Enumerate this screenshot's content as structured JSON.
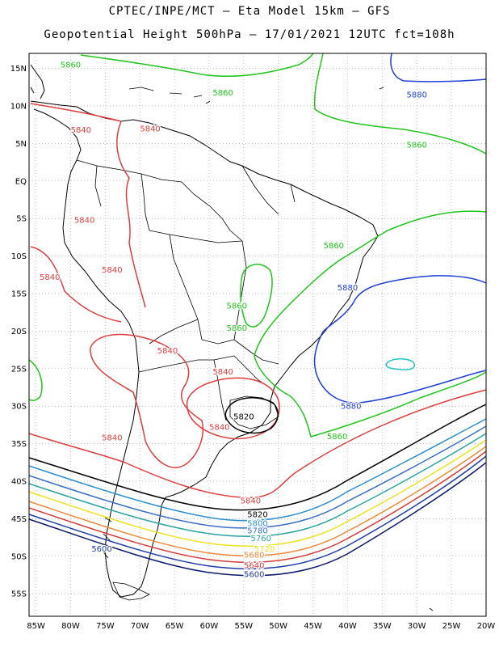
{
  "header": {
    "line1": "CPTEC/INPE/MCT –  Eta Model 15km – GFS",
    "line2": "Geopotential Height 500hPa – 17/01/2021 12UTC fct=108h"
  },
  "axes": {
    "lat_labels": [
      "15N",
      "10N",
      "5N",
      "EQ",
      "5S",
      "10S",
      "15S",
      "20S",
      "25S",
      "30S",
      "35S",
      "40S",
      "45S",
      "50S",
      "55S"
    ],
    "lat_values": [
      15,
      10,
      5,
      0,
      -5,
      -10,
      -15,
      -20,
      -25,
      -30,
      -35,
      -40,
      -45,
      -50,
      -55
    ],
    "lon_labels": [
      "85W",
      "80W",
      "75W",
      "70W",
      "65W",
      "60W",
      "55W",
      "50W",
      "45W",
      "40W",
      "35W",
      "30W",
      "25W",
      "20W"
    ],
    "lon_values": [
      -85,
      -80,
      -75,
      -70,
      -65,
      -60,
      -55,
      -50,
      -45,
      -40,
      -35,
      -30,
      -25,
      -20
    ],
    "lon_range": [
      -86,
      -20
    ],
    "lat_range": [
      -58,
      17
    ],
    "grid": "dotted"
  },
  "colors": {
    "5560": "#0b1a6b",
    "5600": "#1f3da8",
    "5640": "#d63a3a",
    "5680": "#f08a3a",
    "5720": "#f0e21e",
    "5760": "#2aa3a0",
    "5780": "#3a6fc8",
    "5800": "#2b8fcf",
    "5820": "#000000",
    "5840": "#e03c3c",
    "5860": "#22c41e",
    "5880": "#1e3fd8",
    "5900": "#22c3c3",
    "coast": "#000000"
  },
  "contour_labels": [
    {
      "text": "5860",
      "lon": -80,
      "lat": 15.5,
      "color_key": "5860"
    },
    {
      "text": "5860",
      "lon": -58,
      "lat": 11.8,
      "color_key": "5860"
    },
    {
      "text": "5880",
      "lon": -30,
      "lat": 11.5,
      "color_key": "5880"
    },
    {
      "text": "5860",
      "lon": -30,
      "lat": 4.8,
      "color_key": "5860"
    },
    {
      "text": "5840",
      "lon": -78.5,
      "lat": 6.8,
      "color_key": "5840"
    },
    {
      "text": "5840",
      "lon": -68.5,
      "lat": 7.0,
      "color_key": "5840"
    },
    {
      "text": "5840",
      "lon": -78,
      "lat": -5.2,
      "color_key": "5840"
    },
    {
      "text": "5840",
      "lon": -83,
      "lat": -12.8,
      "color_key": "5840"
    },
    {
      "text": "5840",
      "lon": -74,
      "lat": -11.8,
      "color_key": "5840"
    },
    {
      "text": "5860",
      "lon": -42,
      "lat": -8.6,
      "color_key": "5860"
    },
    {
      "text": "5880",
      "lon": -40,
      "lat": -14.2,
      "color_key": "5880"
    },
    {
      "text": "5860",
      "lon": -56,
      "lat": -16.6,
      "color_key": "5860"
    },
    {
      "text": "5860",
      "lon": -56,
      "lat": -19.6,
      "color_key": "5860"
    },
    {
      "text": "5840",
      "lon": -66,
      "lat": -22.6,
      "color_key": "5840"
    },
    {
      "text": "5840",
      "lon": -58,
      "lat": -25.4,
      "color_key": "5840"
    },
    {
      "text": "5820",
      "lon": -55,
      "lat": -31.4,
      "color_key": "5820"
    },
    {
      "text": "5840",
      "lon": -58.5,
      "lat": -32.8,
      "color_key": "5840"
    },
    {
      "text": "5880",
      "lon": -39.5,
      "lat": -30.0,
      "color_key": "5880"
    },
    {
      "text": "5860",
      "lon": -41.5,
      "lat": -34.0,
      "color_key": "5860"
    },
    {
      "text": "5840",
      "lon": -74,
      "lat": -34.2,
      "color_key": "5840"
    },
    {
      "text": "5840",
      "lon": -54,
      "lat": -42.6,
      "color_key": "5840"
    },
    {
      "text": "5820",
      "lon": -53,
      "lat": -44.4,
      "color_key": "5820"
    },
    {
      "text": "5800",
      "lon": -53,
      "lat": -45.6,
      "color_key": "5800"
    },
    {
      "text": "5780",
      "lon": -53,
      "lat": -46.6,
      "color_key": "5780"
    },
    {
      "text": "5760",
      "lon": -52.5,
      "lat": -47.6,
      "color_key": "5760"
    },
    {
      "text": "5720",
      "lon": -52,
      "lat": -49.0,
      "color_key": "5720"
    },
    {
      "text": "5680",
      "lon": -53.5,
      "lat": -49.8,
      "color_key": "5680"
    },
    {
      "text": "5640",
      "lon": -53.5,
      "lat": -51.2,
      "color_key": "5640"
    },
    {
      "text": "5600",
      "lon": -53.5,
      "lat": -52.4,
      "color_key": "5600"
    },
    {
      "text": "5600",
      "lon": -75.5,
      "lat": -49.0,
      "color_key": "5600"
    }
  ]
}
